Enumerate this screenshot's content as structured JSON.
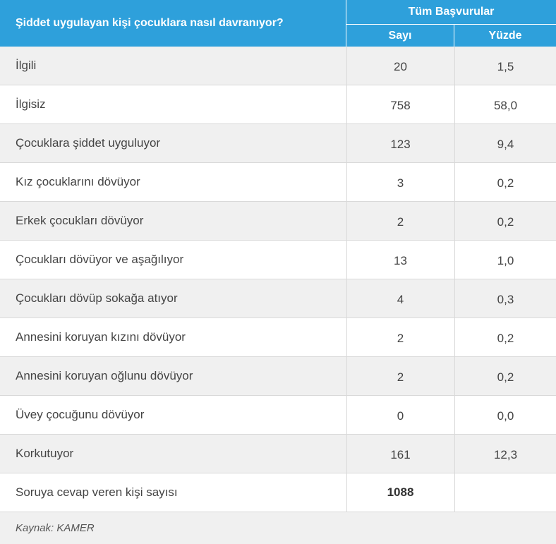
{
  "header": {
    "question": "Şiddet uygulayan kişi çocuklara nasıl davranıyor?",
    "group_label": "Tüm Başvurular",
    "col_count": "Sayı",
    "col_percent": "Yüzde"
  },
  "rows": [
    {
      "label": "İlgili",
      "count": "20",
      "percent": "1,5"
    },
    {
      "label": "İlgisiz",
      "count": "758",
      "percent": "58,0"
    },
    {
      "label": "Çocuklara şiddet uyguluyor",
      "count": "123",
      "percent": "9,4"
    },
    {
      "label": "Kız çocuklarını dövüyor",
      "count": "3",
      "percent": "0,2"
    },
    {
      "label": "Erkek çocukları dövüyor",
      "count": "2",
      "percent": "0,2"
    },
    {
      "label": "Çocukları dövüyor ve aşağılıyor",
      "count": "13",
      "percent": "1,0"
    },
    {
      "label": "Çocukları dövüp sokağa atıyor",
      "count": "4",
      "percent": "0,3"
    },
    {
      "label": "Annesini koruyan kızını dövüyor",
      "count": "2",
      "percent": "0,2"
    },
    {
      "label": "Annesini koruyan oğlunu dövüyor",
      "count": "2",
      "percent": "0,2"
    },
    {
      "label": "Üvey çocuğunu dövüyor",
      "count": "0",
      "percent": "0,0"
    },
    {
      "label": "Korkutuyor",
      "count": "161",
      "percent": "12,3"
    }
  ],
  "total": {
    "label": "Soruya cevap veren kişi sayısı",
    "count": "1088",
    "percent": ""
  },
  "source": "Kaynak: KAMER",
  "colors": {
    "header_bg": "#2ea0db",
    "row_alt_bg": "#f0f0f0",
    "border": "#d9d9d9"
  }
}
